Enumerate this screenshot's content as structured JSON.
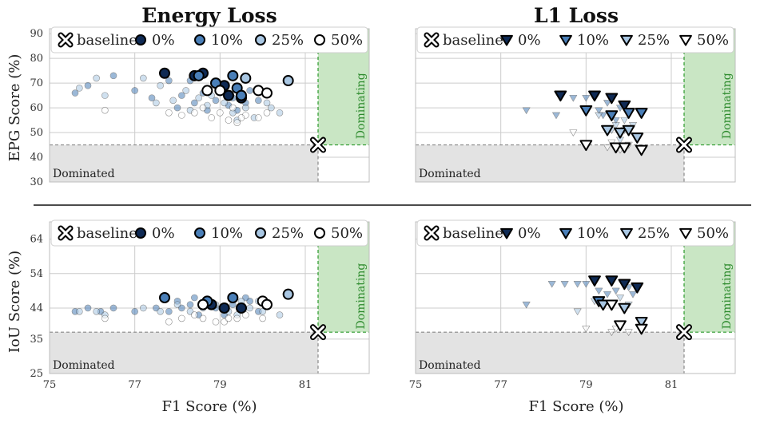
{
  "titles": {
    "left": "Energy Loss",
    "right": "L1 Loss"
  },
  "labels": {
    "x": "F1 Score (%)",
    "y_top": "EPG Score (%)",
    "y_bottom": "IoU Score (%)",
    "dominated": "Dominated",
    "dominating": "Dominating"
  },
  "colors": {
    "p0": "#0f2a54",
    "p10": "#4a7fb8",
    "p25": "#a9c7e3",
    "p50": "#ffffff",
    "grid": "#cccccc",
    "dominated_fill": "#e3e3e3",
    "dominating_fill": "#c9e6c4",
    "dominating_line": "#2c9a2c",
    "baseline_line": "#888888"
  },
  "chart_data": [
    {
      "id": "energy-epg",
      "type": "scatter",
      "title": "Energy Loss",
      "marker": "circle",
      "xlabel": "",
      "ylabel": "EPG Score (%)",
      "xlim": [
        75,
        82.5
      ],
      "ylim": [
        30,
        92
      ],
      "xticks": [
        75,
        77,
        79,
        81
      ],
      "yticks": [
        30,
        40,
        50,
        60,
        70,
        80,
        90
      ],
      "baseline": {
        "x": 81.3,
        "y": 45
      },
      "legend": {
        "placement": "top",
        "entries": [
          "baseline",
          "0%",
          "10%",
          "25%",
          "50%"
        ]
      },
      "series": [
        {
          "name": "0%",
          "key": "p0",
          "points": [
            [
              77.7,
              74
            ],
            [
              78.4,
              73
            ],
            [
              78.6,
              74
            ],
            [
              79.1,
              69
            ],
            [
              79.2,
              65
            ],
            [
              79.5,
              64
            ]
          ]
        },
        {
          "name": "10%",
          "key": "p10",
          "points": [
            [
              78.5,
              73
            ],
            [
              78.9,
              70
            ],
            [
              79.3,
              73
            ],
            [
              79.4,
              68
            ],
            [
              79.5,
              65
            ]
          ],
          "faded": [
            [
              75.6,
              66
            ],
            [
              75.9,
              69
            ],
            [
              76.5,
              73
            ],
            [
              77.0,
              67
            ],
            [
              77.4,
              64
            ],
            [
              77.8,
              71
            ],
            [
              78.1,
              65
            ],
            [
              78.3,
              71
            ],
            [
              78.4,
              62
            ],
            [
              78.6,
              66
            ],
            [
              78.7,
              59
            ],
            [
              78.9,
              63
            ],
            [
              79.0,
              67
            ],
            [
              79.2,
              61
            ],
            [
              79.3,
              64
            ],
            [
              79.4,
              59
            ],
            [
              79.6,
              62
            ],
            [
              79.7,
              67
            ],
            [
              79.9,
              63
            ],
            [
              78.0,
              60
            ]
          ]
        },
        {
          "name": "25%",
          "key": "p25",
          "points": [
            [
              79.6,
              72
            ],
            [
              80.6,
              71
            ]
          ],
          "faded": [
            [
              75.7,
              68
            ],
            [
              76.1,
              72
            ],
            [
              76.3,
              65
            ],
            [
              77.2,
              72
            ],
            [
              77.6,
              69
            ],
            [
              77.9,
              63
            ],
            [
              78.2,
              67
            ],
            [
              78.5,
              64
            ],
            [
              78.8,
              65
            ],
            [
              79.1,
              62
            ],
            [
              79.3,
              58
            ],
            [
              79.6,
              60
            ],
            [
              79.8,
              56
            ],
            [
              80.1,
              62
            ],
            [
              80.4,
              58
            ],
            [
              78.7,
              61
            ],
            [
              79.4,
              55
            ],
            [
              80.2,
              60
            ],
            [
              77.5,
              62
            ],
            [
              78.3,
              59
            ]
          ]
        },
        {
          "name": "50%",
          "key": "p50",
          "points": [
            [
              78.7,
              67
            ],
            [
              79.0,
              67
            ],
            [
              79.9,
              67
            ],
            [
              80.1,
              66
            ]
          ],
          "faded": [
            [
              76.3,
              59
            ],
            [
              77.8,
              58
            ],
            [
              78.1,
              57
            ],
            [
              78.4,
              58
            ],
            [
              78.6,
              60
            ],
            [
              79.0,
              58
            ],
            [
              79.2,
              55
            ],
            [
              79.4,
              54
            ],
            [
              79.6,
              57
            ],
            [
              79.9,
              56
            ],
            [
              80.1,
              58
            ],
            [
              79.3,
              60
            ],
            [
              78.8,
              56
            ],
            [
              79.5,
              56
            ]
          ]
        }
      ]
    },
    {
      "id": "l1-epg",
      "type": "scatter",
      "title": "L1 Loss",
      "marker": "triangle-down",
      "xlabel": "",
      "ylabel": "",
      "xlim": [
        75,
        82.5
      ],
      "ylim": [
        30,
        92
      ],
      "xticks": [
        75,
        77,
        79,
        81
      ],
      "yticks": [
        30,
        40,
        50,
        60,
        70,
        80,
        90
      ],
      "baseline": {
        "x": 81.3,
        "y": 45
      },
      "legend": {
        "placement": "top",
        "entries": [
          "baseline",
          "0%",
          "10%",
          "25%",
          "50%"
        ]
      },
      "series": [
        {
          "name": "0%",
          "key": "p0",
          "points": [
            [
              78.4,
              65
            ],
            [
              79.2,
              65
            ],
            [
              79.6,
              64
            ],
            [
              79.9,
              61
            ]
          ]
        },
        {
          "name": "10%",
          "key": "p10",
          "points": [
            [
              79.0,
              59
            ],
            [
              80.0,
              58
            ],
            [
              80.3,
              58
            ],
            [
              79.6,
              57
            ]
          ],
          "faded": [
            [
              77.6,
              59
            ],
            [
              78.3,
              57
            ],
            [
              78.7,
              64
            ],
            [
              79.0,
              64
            ],
            [
              79.3,
              59
            ],
            [
              79.5,
              62
            ],
            [
              79.8,
              60
            ],
            [
              80.0,
              57
            ],
            [
              79.4,
              57
            ],
            [
              79.7,
              55
            ]
          ]
        },
        {
          "name": "25%",
          "key": "p25",
          "points": [
            [
              79.5,
              51
            ],
            [
              79.8,
              50
            ],
            [
              80.0,
              51
            ],
            [
              80.2,
              48
            ]
          ],
          "faded": [
            [
              79.3,
              57
            ],
            [
              79.7,
              53
            ],
            [
              79.9,
              55
            ],
            [
              79.6,
              51
            ],
            [
              80.1,
              53
            ],
            [
              79.8,
              47
            ],
            [
              79.9,
              51
            ]
          ]
        },
        {
          "name": "50%",
          "key": "p50",
          "points": [
            [
              79.0,
              45
            ],
            [
              79.7,
              44
            ],
            [
              79.9,
              44
            ],
            [
              80.3,
              43
            ]
          ],
          "faded": [
            [
              78.7,
              50
            ],
            [
              79.5,
              44
            ],
            [
              79.8,
              43
            ],
            [
              79.6,
              46
            ],
            [
              80.0,
              45
            ]
          ]
        }
      ]
    },
    {
      "id": "energy-iou",
      "type": "scatter",
      "title": "",
      "marker": "circle",
      "xlabel": "F1 Score (%)",
      "ylabel": "IoU Score (%)",
      "xlim": [
        75,
        82.5
      ],
      "ylim": [
        25,
        69
      ],
      "xticks": [
        75,
        77,
        79,
        81
      ],
      "yticks": [
        25,
        35,
        44,
        54,
        64
      ],
      "ytick_labels": [
        "25",
        "35",
        "44",
        "54",
        "64"
      ],
      "baseline": {
        "x": 81.3,
        "y": 37
      },
      "legend": {
        "placement": "top",
        "entries": [
          "baseline",
          "0%",
          "10%",
          "25%",
          "50%"
        ]
      },
      "series": [
        {
          "name": "0%",
          "key": "p0",
          "points": [
            [
              78.8,
              45
            ],
            [
              79.1,
              44
            ],
            [
              79.5,
              44
            ]
          ]
        },
        {
          "name": "10%",
          "key": "p10",
          "points": [
            [
              77.7,
              47
            ],
            [
              78.7,
              46
            ],
            [
              79.3,
              47
            ]
          ],
          "faded": [
            [
              75.6,
              43
            ],
            [
              75.9,
              44
            ],
            [
              76.2,
              43
            ],
            [
              76.5,
              44
            ],
            [
              77.0,
              43
            ],
            [
              77.5,
              44
            ],
            [
              77.8,
              43
            ],
            [
              78.1,
              44
            ],
            [
              78.3,
              45
            ],
            [
              78.5,
              42
            ],
            [
              78.7,
              46
            ],
            [
              78.9,
              44
            ],
            [
              79.1,
              42
            ],
            [
              79.3,
              45
            ],
            [
              79.5,
              44
            ],
            [
              79.7,
              46
            ],
            [
              79.9,
              43
            ],
            [
              78.0,
              46
            ],
            [
              78.4,
              47
            ],
            [
              79.6,
              47
            ]
          ]
        },
        {
          "name": "25%",
          "key": "p25",
          "points": [
            [
              80.6,
              48
            ]
          ],
          "faded": [
            [
              75.7,
              43
            ],
            [
              76.1,
              43
            ],
            [
              76.3,
              42
            ],
            [
              77.2,
              44
            ],
            [
              77.6,
              43
            ],
            [
              78.0,
              45
            ],
            [
              78.3,
              43
            ],
            [
              78.6,
              44
            ],
            [
              78.9,
              45
            ],
            [
              79.2,
              43
            ],
            [
              79.4,
              42
            ],
            [
              79.7,
              44
            ],
            [
              80.0,
              43
            ],
            [
              80.4,
              42
            ],
            [
              79.9,
              46
            ],
            [
              79.5,
              46
            ]
          ]
        },
        {
          "name": "50%",
          "key": "p50",
          "points": [
            [
              78.6,
              45
            ],
            [
              80.0,
              46
            ],
            [
              80.1,
              45
            ]
          ],
          "faded": [
            [
              76.3,
              41
            ],
            [
              77.8,
              40
            ],
            [
              78.1,
              41
            ],
            [
              78.4,
              42
            ],
            [
              78.6,
              41
            ],
            [
              78.9,
              40
            ],
            [
              79.1,
              40
            ],
            [
              79.4,
              41
            ],
            [
              79.6,
              42
            ],
            [
              80.0,
              41
            ],
            [
              79.2,
              41
            ]
          ]
        }
      ]
    },
    {
      "id": "l1-iou",
      "type": "scatter",
      "title": "",
      "marker": "triangle-down",
      "xlabel": "F1 Score (%)",
      "ylabel": "",
      "xlim": [
        75,
        82.5
      ],
      "ylim": [
        25,
        69
      ],
      "xticks": [
        75,
        77,
        79,
        81
      ],
      "yticks": [
        25,
        35,
        44,
        54,
        64
      ],
      "ytick_labels": [
        "25",
        "35",
        "44",
        "54",
        "64"
      ],
      "baseline": {
        "x": 81.3,
        "y": 37
      },
      "legend": {
        "placement": "top",
        "entries": [
          "baseline",
          "0%",
          "10%",
          "25%",
          "50%"
        ]
      },
      "series": [
        {
          "name": "0%",
          "key": "p0",
          "points": [
            [
              79.2,
              52
            ],
            [
              79.6,
              52
            ],
            [
              79.9,
              51
            ],
            [
              80.2,
              50
            ]
          ]
        },
        {
          "name": "10%",
          "key": "p10",
          "points": [
            [
              79.3,
              46
            ],
            [
              79.6,
              45
            ]
          ],
          "faded": [
            [
              77.6,
              45
            ],
            [
              78.2,
              51
            ],
            [
              78.5,
              51
            ],
            [
              78.8,
              51
            ],
            [
              79.0,
              51
            ],
            [
              79.3,
              49
            ],
            [
              79.7,
              49
            ],
            [
              80.0,
              50
            ],
            [
              79.5,
              48
            ],
            [
              80.1,
              48
            ]
          ]
        },
        {
          "name": "25%",
          "key": "p25",
          "points": [
            [
              79.4,
              45
            ],
            [
              79.9,
              44
            ],
            [
              80.3,
              40
            ]
          ],
          "faded": [
            [
              78.8,
              43
            ],
            [
              79.2,
              46
            ],
            [
              79.6,
              45
            ],
            [
              80.0,
              45
            ],
            [
              79.8,
              47
            ]
          ]
        },
        {
          "name": "50%",
          "key": "p50",
          "points": [
            [
              79.6,
              45
            ],
            [
              79.8,
              39
            ],
            [
              80.3,
              38
            ]
          ],
          "faded": [
            [
              79.0,
              38
            ],
            [
              79.6,
              37
            ],
            [
              79.7,
              38
            ],
            [
              80.0,
              37
            ]
          ]
        }
      ]
    }
  ]
}
